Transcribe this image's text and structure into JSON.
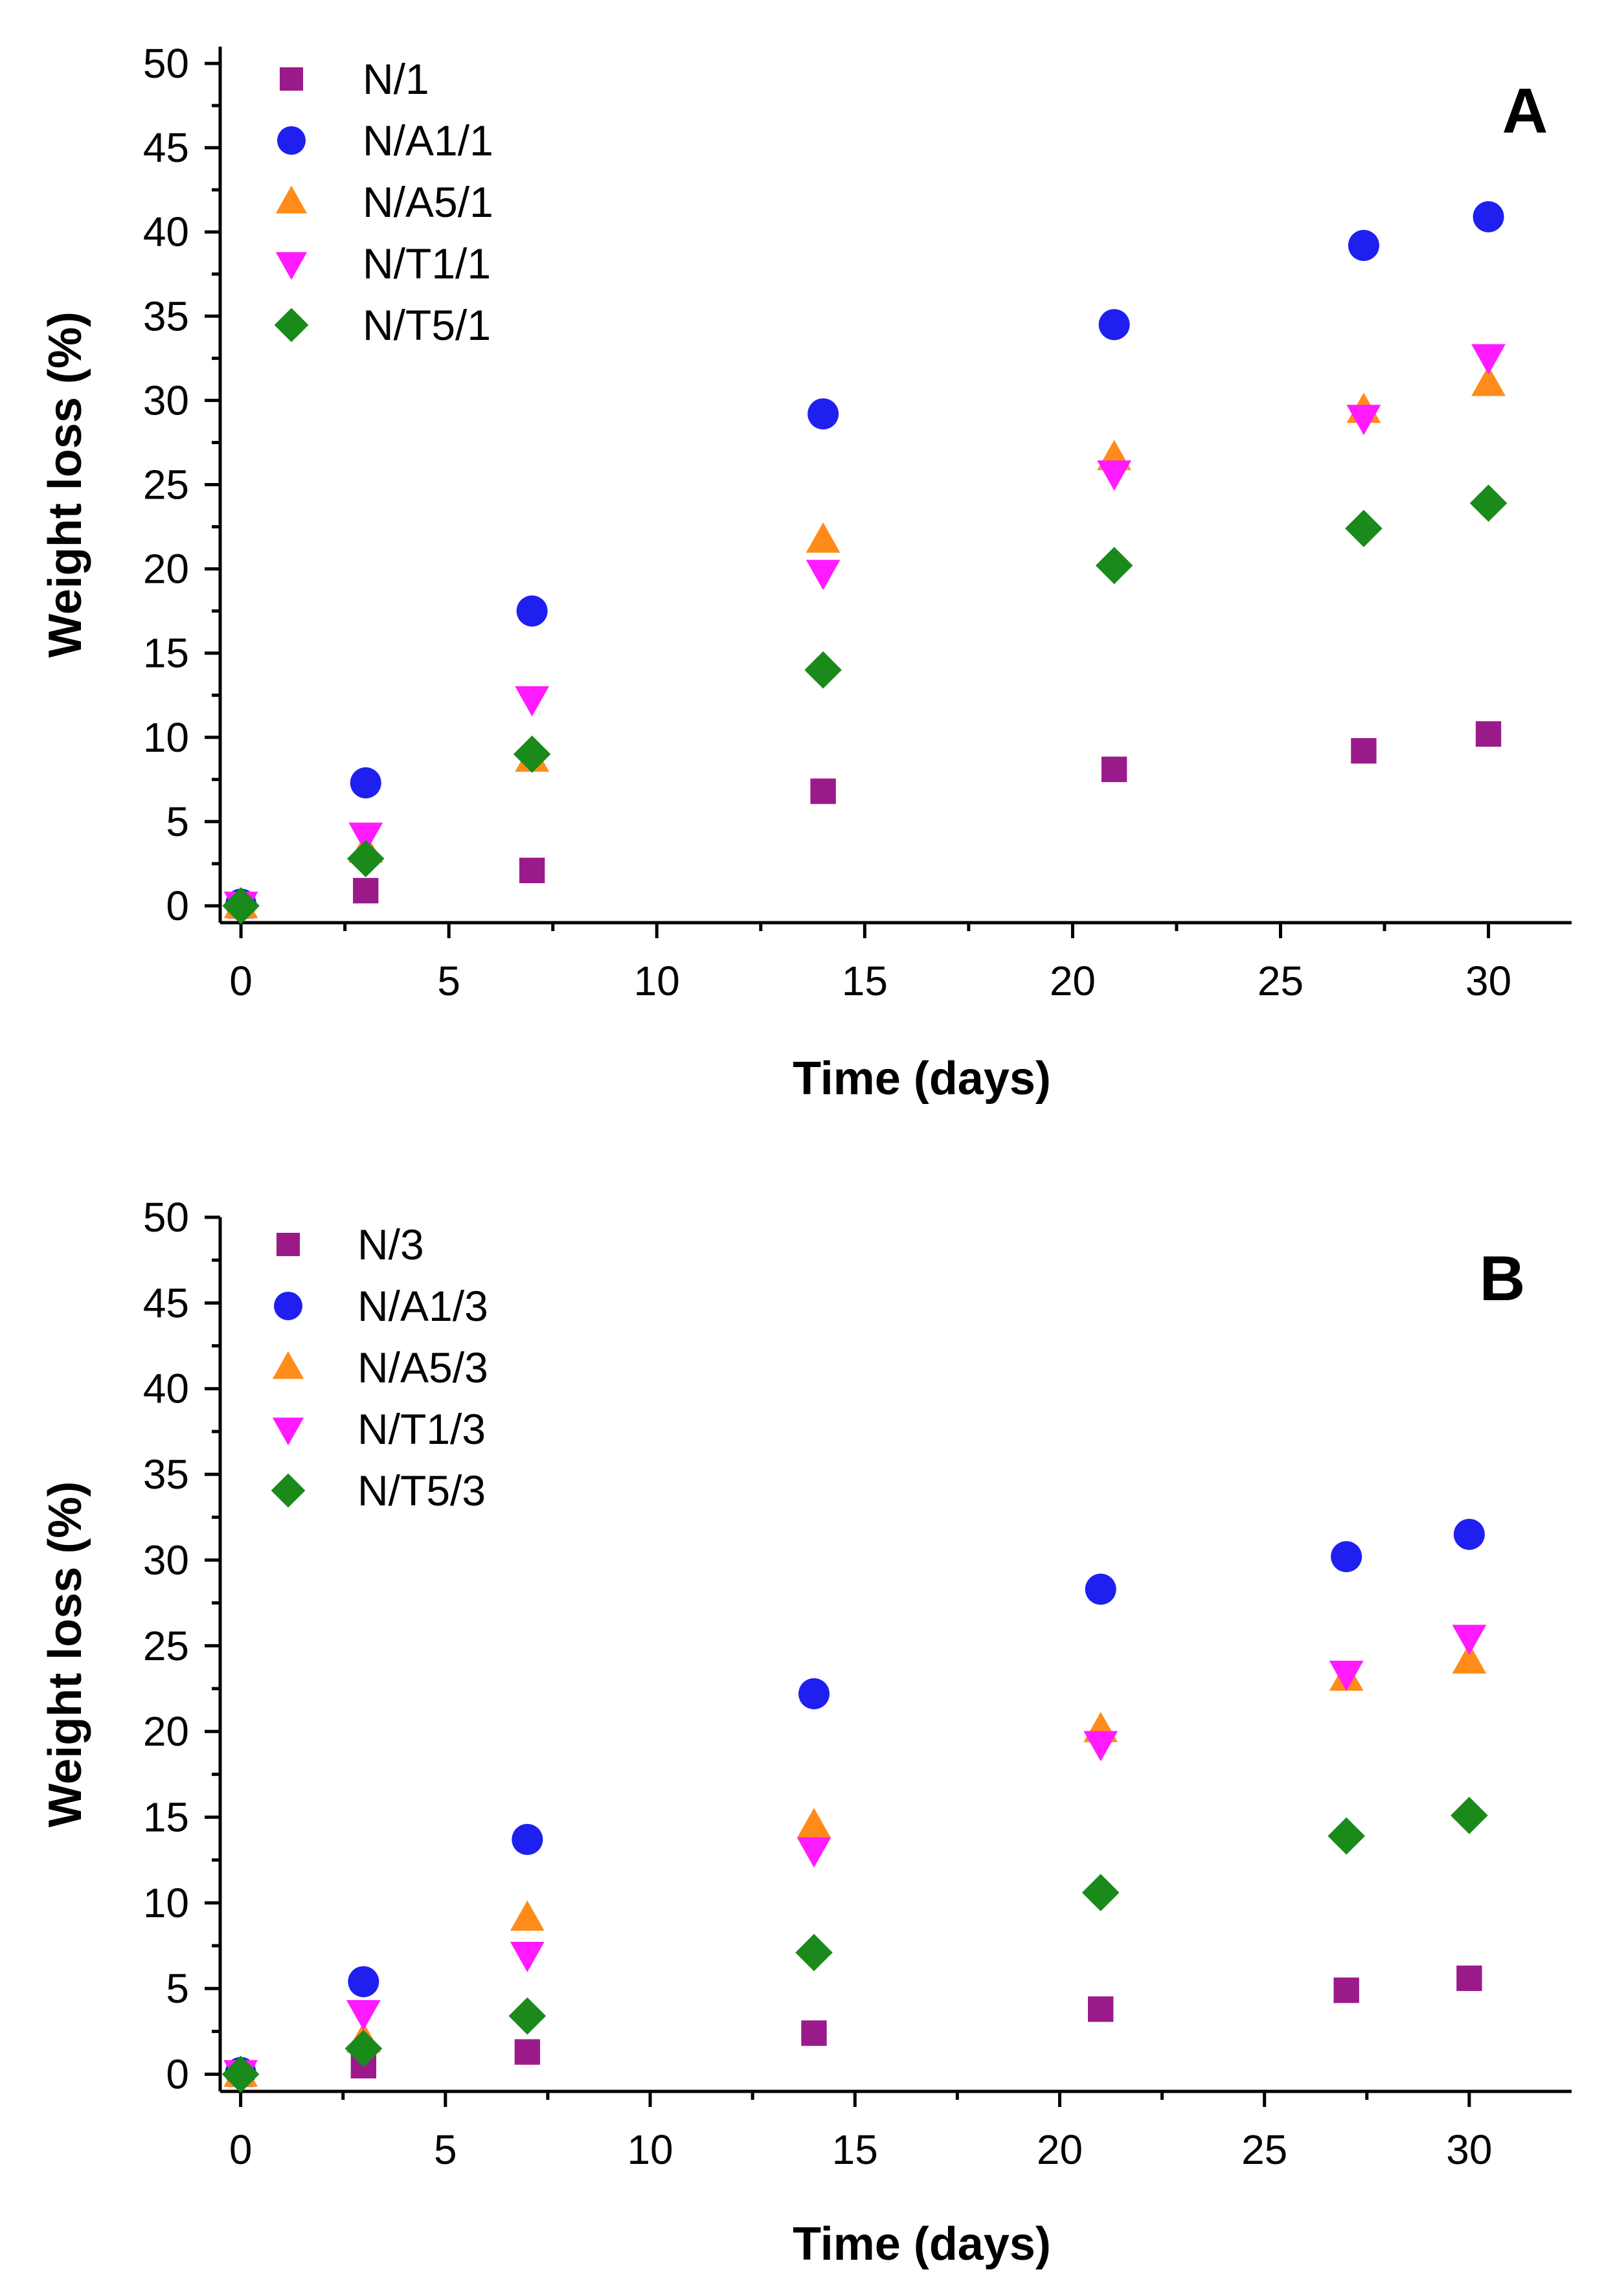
{
  "chart_data": [
    {
      "type": "scatter",
      "panel_label": "A",
      "xlabel": "Time (days)",
      "ylabel": "Weight loss (%)",
      "xlim": [
        -0.5,
        32
      ],
      "ylim": [
        -1,
        51
      ],
      "xticks": [
        0,
        5,
        10,
        15,
        20,
        25,
        30
      ],
      "yticks": [
        0,
        5,
        10,
        15,
        20,
        25,
        30,
        35,
        40,
        45,
        50
      ],
      "grid": false,
      "legend_position": "top-left",
      "x": [
        0,
        3,
        7,
        14,
        21,
        27,
        30
      ],
      "series": [
        {
          "name": "N/1",
          "marker": "square",
          "color": "#9b1a8a",
          "values": [
            0,
            0.9,
            2.1,
            6.8,
            8.1,
            9.2,
            10.2
          ]
        },
        {
          "name": "N/A1/1",
          "marker": "circle",
          "color": "#1f1ff0",
          "values": [
            0.1,
            7.3,
            17.5,
            29.2,
            34.5,
            39.2,
            40.9
          ]
        },
        {
          "name": "N/A5/1",
          "marker": "triangle-up",
          "color": "#ff8c1a",
          "values": [
            0,
            3.3,
            8.7,
            21.7,
            26.6,
            29.4,
            31.0
          ]
        },
        {
          "name": "N/T1/1",
          "marker": "triangle-down",
          "color": "#ff1aff",
          "values": [
            0.1,
            4.2,
            12.3,
            19.8,
            25.7,
            29.0,
            32.6
          ]
        },
        {
          "name": "N/T5/1",
          "marker": "diamond",
          "color": "#1a8a1a",
          "values": [
            0,
            2.8,
            9.0,
            14.0,
            20.2,
            22.4,
            23.9
          ]
        }
      ]
    },
    {
      "type": "scatter",
      "panel_label": "B",
      "xlabel": "Time (days)",
      "ylabel": "Weight loss (%)",
      "xlim": [
        -0.5,
        32.5
      ],
      "ylim": [
        -1,
        50
      ],
      "xticks": [
        0,
        5,
        10,
        15,
        20,
        25,
        30
      ],
      "yticks": [
        0,
        5,
        10,
        15,
        20,
        25,
        30,
        35,
        40,
        45,
        50
      ],
      "grid": false,
      "legend_position": "top-left",
      "x": [
        0,
        3,
        7,
        14,
        21,
        27,
        30
      ],
      "series": [
        {
          "name": "N/3",
          "marker": "square",
          "color": "#9b1a8a",
          "values": [
            0,
            0.5,
            1.3,
            2.4,
            3.8,
            4.9,
            5.6
          ]
        },
        {
          "name": "N/A1/3",
          "marker": "circle",
          "color": "#1f1ff0",
          "values": [
            0.1,
            5.4,
            13.7,
            22.2,
            28.3,
            30.2,
            31.5
          ]
        },
        {
          "name": "N/A5/3",
          "marker": "triangle-up",
          "color": "#ff8c1a",
          "values": [
            0,
            2.0,
            9.1,
            14.5,
            20.1,
            23.1,
            24.1
          ]
        },
        {
          "name": "N/T1/3",
          "marker": "triangle-down",
          "color": "#ff1aff",
          "values": [
            0.1,
            3.6,
            7.0,
            13.1,
            19.3,
            23.4,
            25.5
          ]
        },
        {
          "name": "N/T5/3",
          "marker": "diamond",
          "color": "#1a8a1a",
          "values": [
            0,
            1.5,
            3.4,
            7.1,
            10.6,
            13.9,
            15.1
          ]
        }
      ]
    }
  ]
}
